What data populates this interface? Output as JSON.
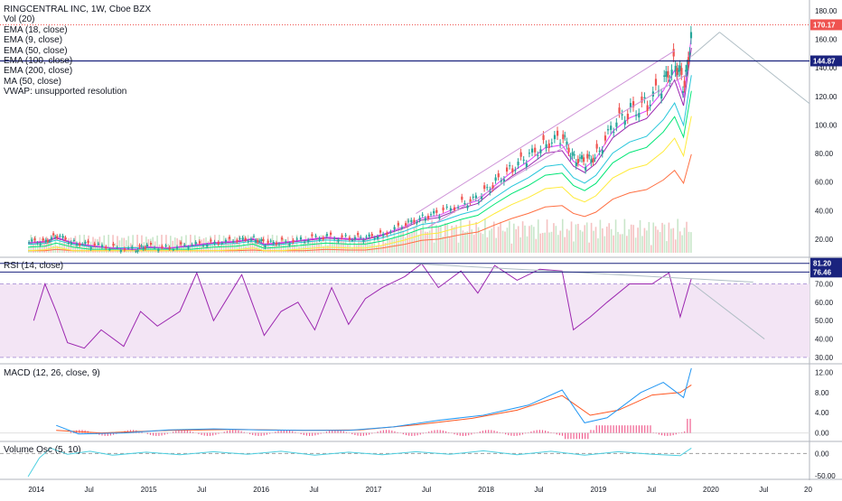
{
  "legend": {
    "title": "RINGCENTRAL INC, 1W, Cboe BZX",
    "lines": [
      "Vol (20)",
      "EMA (18, close)",
      "EMA (9, close)",
      "EMA (50, close)",
      "EMA (100, close)",
      "EMA (200, close)",
      "MA (50, close)",
      "VWAP: unsupported resolution"
    ]
  },
  "panes": {
    "rsi_title": "RSI (14, close)",
    "macd_title": "MACD (12, 26, close, 9)",
    "volosc_title": "Volume Osc (5, 10)"
  },
  "price_tags": {
    "last": "170.17",
    "hline": "144.87",
    "rsi_a": "81.20",
    "rsi_b": "76.46"
  },
  "colors": {
    "up": "#26a69a",
    "down": "#ef5350",
    "ema18": "#9c27b0",
    "ema9": "#e040fb",
    "ema50": "#00e676",
    "ema100": "#26c6da",
    "ema200": "#ffeb3b",
    "ma50": "#ff7043",
    "rsi": "#9c27b0",
    "rsi_band": "#f3e5f5",
    "macd": "#2196f3",
    "signal": "#ff5722",
    "hline": "#1a237e",
    "last": "#ef5350"
  },
  "chart_data": {
    "type": "line",
    "title": "RINGCENTRAL INC, 1W, Cboe BZX",
    "x_ticks": [
      "2014",
      "Jul",
      "2015",
      "Jul",
      "2016",
      "Jul",
      "2017",
      "Jul",
      "2018",
      "Jul",
      "2019",
      "Jul",
      "2020",
      "Jul",
      "20"
    ],
    "price_axis": {
      "ticks": [
        "20.00",
        "40.00",
        "60.00",
        "80.00",
        "100.00",
        "120.00",
        "140.00",
        "160.00",
        "180.00"
      ],
      "ylim": [
        8,
        185
      ]
    },
    "rsi_axis": {
      "ticks": [
        "30.00",
        "40.00",
        "50.00",
        "60.00",
        "70.00"
      ],
      "ylim": [
        27,
        84
      ]
    },
    "macd_axis": {
      "ticks": [
        "0.00",
        "4.00",
        "8.00",
        "12.00"
      ],
      "ylim": [
        -1.5,
        13.5
      ]
    },
    "volosc_axis": {
      "ticks": [
        "0.00",
        "-50.00"
      ],
      "ylim": [
        -60,
        25
      ]
    },
    "last_price": 170.17,
    "hline_price": 144.87,
    "price_series": [
      {
        "t": 2013.95,
        "v": 18
      },
      {
        "t": 2014.1,
        "v": 19
      },
      {
        "t": 2014.2,
        "v": 22
      },
      {
        "t": 2014.35,
        "v": 18
      },
      {
        "t": 2014.5,
        "v": 16
      },
      {
        "t": 2014.7,
        "v": 14
      },
      {
        "t": 2014.9,
        "v": 13
      },
      {
        "t": 2015.0,
        "v": 15
      },
      {
        "t": 2015.2,
        "v": 14
      },
      {
        "t": 2015.4,
        "v": 16
      },
      {
        "t": 2015.6,
        "v": 18
      },
      {
        "t": 2015.8,
        "v": 19
      },
      {
        "t": 2015.95,
        "v": 21
      },
      {
        "t": 2016.05,
        "v": 17
      },
      {
        "t": 2016.2,
        "v": 18
      },
      {
        "t": 2016.4,
        "v": 20
      },
      {
        "t": 2016.6,
        "v": 22
      },
      {
        "t": 2016.8,
        "v": 21
      },
      {
        "t": 2016.95,
        "v": 21
      },
      {
        "t": 2017.1,
        "v": 24
      },
      {
        "t": 2017.3,
        "v": 30
      },
      {
        "t": 2017.45,
        "v": 36
      },
      {
        "t": 2017.6,
        "v": 38
      },
      {
        "t": 2017.8,
        "v": 45
      },
      {
        "t": 2017.95,
        "v": 49
      },
      {
        "t": 2018.1,
        "v": 60
      },
      {
        "t": 2018.25,
        "v": 70
      },
      {
        "t": 2018.4,
        "v": 78
      },
      {
        "t": 2018.55,
        "v": 88
      },
      {
        "t": 2018.7,
        "v": 90
      },
      {
        "t": 2018.8,
        "v": 78
      },
      {
        "t": 2018.9,
        "v": 73
      },
      {
        "t": 2019.0,
        "v": 80
      },
      {
        "t": 2019.15,
        "v": 100
      },
      {
        "t": 2019.3,
        "v": 110
      },
      {
        "t": 2019.45,
        "v": 115
      },
      {
        "t": 2019.6,
        "v": 130
      },
      {
        "t": 2019.7,
        "v": 145
      },
      {
        "t": 2019.78,
        "v": 125
      },
      {
        "t": 2019.85,
        "v": 170
      }
    ],
    "rsi_series": [
      {
        "t": 2014.0,
        "v": 50
      },
      {
        "t": 2014.1,
        "v": 70
      },
      {
        "t": 2014.2,
        "v": 55
      },
      {
        "t": 2014.3,
        "v": 38
      },
      {
        "t": 2014.45,
        "v": 35
      },
      {
        "t": 2014.6,
        "v": 45
      },
      {
        "t": 2014.8,
        "v": 36
      },
      {
        "t": 2014.95,
        "v": 55
      },
      {
        "t": 2015.1,
        "v": 47
      },
      {
        "t": 2015.3,
        "v": 55
      },
      {
        "t": 2015.45,
        "v": 76
      },
      {
        "t": 2015.6,
        "v": 50
      },
      {
        "t": 2015.85,
        "v": 75
      },
      {
        "t": 2016.05,
        "v": 42
      },
      {
        "t": 2016.2,
        "v": 55
      },
      {
        "t": 2016.35,
        "v": 60
      },
      {
        "t": 2016.5,
        "v": 45
      },
      {
        "t": 2016.65,
        "v": 68
      },
      {
        "t": 2016.8,
        "v": 48
      },
      {
        "t": 2016.95,
        "v": 62
      },
      {
        "t": 2017.1,
        "v": 68
      },
      {
        "t": 2017.3,
        "v": 74
      },
      {
        "t": 2017.45,
        "v": 81
      },
      {
        "t": 2017.6,
        "v": 68
      },
      {
        "t": 2017.8,
        "v": 77
      },
      {
        "t": 2017.95,
        "v": 65
      },
      {
        "t": 2018.1,
        "v": 80
      },
      {
        "t": 2018.3,
        "v": 72
      },
      {
        "t": 2018.5,
        "v": 78
      },
      {
        "t": 2018.7,
        "v": 77
      },
      {
        "t": 2018.8,
        "v": 45
      },
      {
        "t": 2018.95,
        "v": 52
      },
      {
        "t": 2019.1,
        "v": 60
      },
      {
        "t": 2019.3,
        "v": 70
      },
      {
        "t": 2019.5,
        "v": 70
      },
      {
        "t": 2019.65,
        "v": 76
      },
      {
        "t": 2019.75,
        "v": 52
      },
      {
        "t": 2019.85,
        "v": 73
      }
    ],
    "macd_series": [
      {
        "t": 2014.2,
        "v": 1.5
      },
      {
        "t": 2014.4,
        "v": -0.2
      },
      {
        "t": 2014.8,
        "v": 0.0
      },
      {
        "t": 2015.2,
        "v": 0.6
      },
      {
        "t": 2015.6,
        "v": 0.8
      },
      {
        "t": 2016.0,
        "v": 0.6
      },
      {
        "t": 2016.4,
        "v": 0.5
      },
      {
        "t": 2016.8,
        "v": 0.5
      },
      {
        "t": 2017.2,
        "v": 1.2
      },
      {
        "t": 2017.6,
        "v": 2.5
      },
      {
        "t": 2018.0,
        "v": 3.5
      },
      {
        "t": 2018.4,
        "v": 5.5
      },
      {
        "t": 2018.7,
        "v": 8.5
      },
      {
        "t": 2018.9,
        "v": 2.0
      },
      {
        "t": 2019.1,
        "v": 3.0
      },
      {
        "t": 2019.4,
        "v": 8.0
      },
      {
        "t": 2019.6,
        "v": 10.0
      },
      {
        "t": 2019.78,
        "v": 7.0
      },
      {
        "t": 2019.85,
        "v": 12.8
      }
    ],
    "signal_series": [
      {
        "t": 2014.2,
        "v": 0.5
      },
      {
        "t": 2014.6,
        "v": 0.0
      },
      {
        "t": 2015.2,
        "v": 0.5
      },
      {
        "t": 2015.8,
        "v": 0.7
      },
      {
        "t": 2016.4,
        "v": 0.5
      },
      {
        "t": 2016.9,
        "v": 0.6
      },
      {
        "t": 2017.4,
        "v": 1.6
      },
      {
        "t": 2017.9,
        "v": 2.9
      },
      {
        "t": 2018.3,
        "v": 4.5
      },
      {
        "t": 2018.7,
        "v": 7.4
      },
      {
        "t": 2018.95,
        "v": 3.5
      },
      {
        "t": 2019.2,
        "v": 4.5
      },
      {
        "t": 2019.5,
        "v": 7.5
      },
      {
        "t": 2019.75,
        "v": 8.0
      },
      {
        "t": 2019.85,
        "v": 9.5
      }
    ],
    "volosc_series": [
      {
        "t": 2013.95,
        "v": -52
      },
      {
        "t": 2014.05,
        "v": -10
      },
      {
        "t": 2014.15,
        "v": 12
      },
      {
        "t": 2014.3,
        "v": -2
      },
      {
        "t": 2014.5,
        "v": 5
      },
      {
        "t": 2014.7,
        "v": -4
      },
      {
        "t": 2015.0,
        "v": 3
      },
      {
        "t": 2015.3,
        "v": -3
      },
      {
        "t": 2015.6,
        "v": 4
      },
      {
        "t": 2015.9,
        "v": -2
      },
      {
        "t": 2016.2,
        "v": 5
      },
      {
        "t": 2016.5,
        "v": -4
      },
      {
        "t": 2016.8,
        "v": 3
      },
      {
        "t": 2017.1,
        "v": -3
      },
      {
        "t": 2017.4,
        "v": 4
      },
      {
        "t": 2017.7,
        "v": -2
      },
      {
        "t": 2018.0,
        "v": 6
      },
      {
        "t": 2018.3,
        "v": -3
      },
      {
        "t": 2018.6,
        "v": 5
      },
      {
        "t": 2018.9,
        "v": -4
      },
      {
        "t": 2019.2,
        "v": 4
      },
      {
        "t": 2019.5,
        "v": -2
      },
      {
        "t": 2019.75,
        "v": -5
      },
      {
        "t": 2019.85,
        "v": 12
      }
    ]
  }
}
